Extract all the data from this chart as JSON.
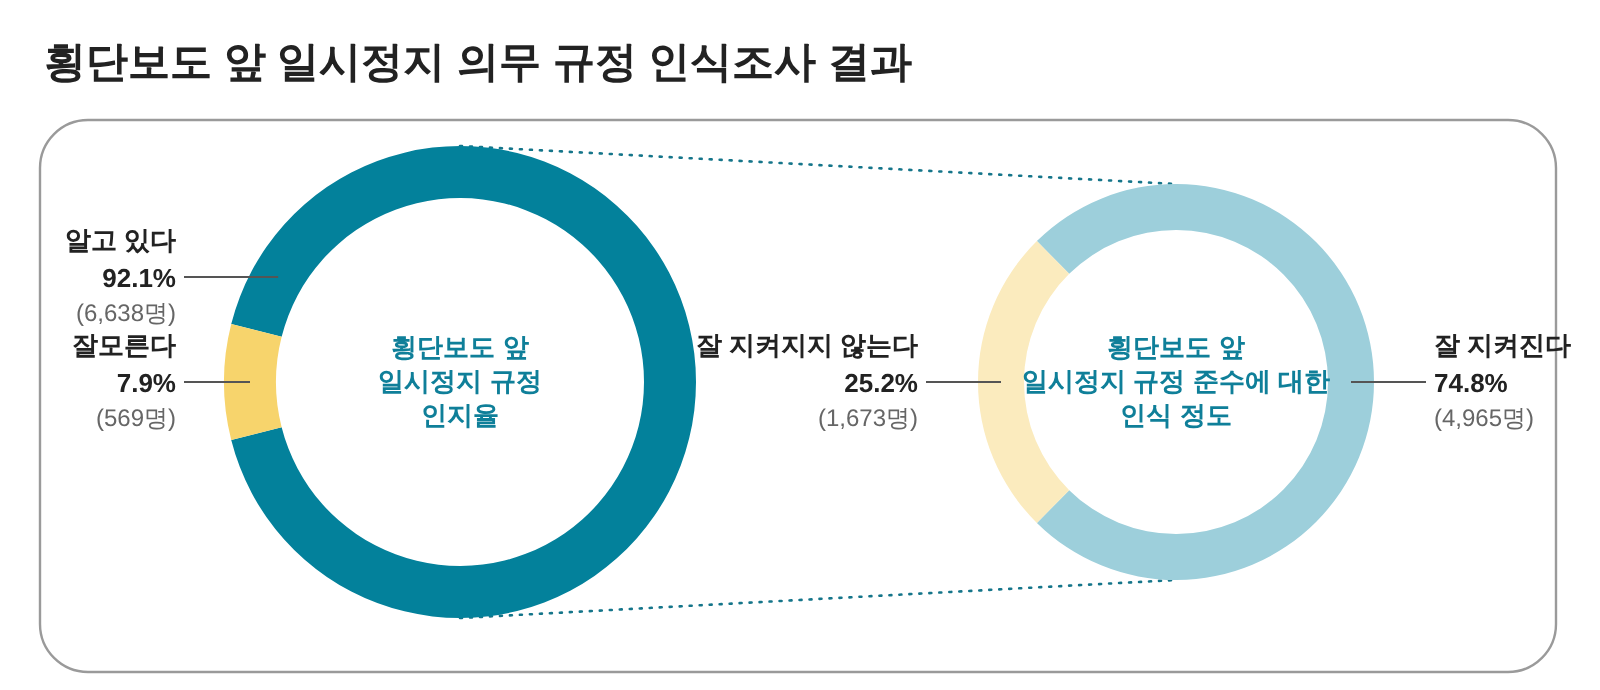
{
  "chart_data": [
    {
      "type": "donut",
      "title": "횡단보도 앞 일시정지 의무 규정 인식조사 결과",
      "annotations": [
        "횡단보도 앞\n일시정지 규정\n인지율"
      ],
      "categories": [
        "알고 있다",
        "잘모른다"
      ],
      "values": [
        92.1,
        7.9
      ],
      "colors": [
        "#03819b",
        "#f7d46c"
      ],
      "value_labels": [
        "92.1%\n(6,638명)",
        "7.9%\n(569명)"
      ]
    },
    {
      "type": "donut",
      "annotations": [
        "횡단보도 앞\n일시정지 규정 준수에 대한\n인식 정도"
      ],
      "categories": [
        "잘 지켜진다",
        "잘 지켜지지 않는다"
      ],
      "values": [
        74.8,
        25.2
      ],
      "colors": [
        "#9dcfdb",
        "#fbebbe"
      ],
      "value_labels": [
        "74.8%\n(4,965명)",
        "25.2%\n(1,673명)"
      ]
    }
  ]
}
